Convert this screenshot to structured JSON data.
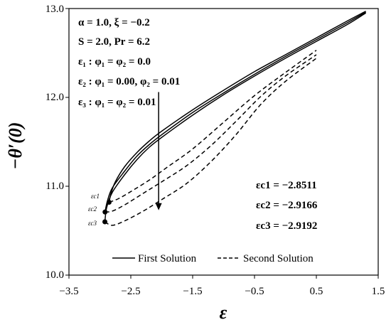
{
  "chart_data": {
    "type": "line",
    "title": "",
    "xlabel": "ε",
    "ylabel": "−θ′(0)",
    "xlim": [
      -3.5,
      1.5
    ],
    "ylim": [
      10.0,
      13.0
    ],
    "xticks": [
      "−3.5",
      "−2.5",
      "−1.5",
      "−0.5",
      "0.5",
      "1.5"
    ],
    "yticks": [
      "10.0",
      "11.0",
      "12.0",
      "13.0"
    ],
    "grid": false,
    "legend": {
      "placement": "bottom-right",
      "entries": [
        "First Solution",
        "Second Solution"
      ]
    },
    "parameters": [
      "α = 1.0, ξ = −0.2",
      "S = 2.0, Pr = 6.2",
      "ε₁ : φ₁ = φ₂ = 0.0",
      "ε₂ : φ₁ = 0.00, φ₂ = 0.01",
      "ε₃ : φ₁ = φ₂ = 0.01"
    ],
    "critical_labels": [
      "εc1 = −2.8511",
      "εc2 = −2.9166",
      "εc3 = −2.9192"
    ],
    "critical_markers": [
      "εc1",
      "εc2",
      "εc3"
    ],
    "critical_points": [
      {
        "x": -2.8511,
        "y": 10.82
      },
      {
        "x": -2.9166,
        "y": 10.71
      },
      {
        "x": -2.9192,
        "y": 10.6
      }
    ],
    "series": [
      {
        "style": "solid",
        "x": [
          -2.8511,
          -2.82,
          -2.75,
          -2.6,
          -2.4,
          -2.2,
          -2.0,
          -1.5,
          -1.0,
          -0.5,
          0.0,
          0.5,
          1.0,
          1.3
        ],
        "y": [
          10.82,
          10.92,
          11.05,
          11.22,
          11.38,
          11.51,
          11.62,
          11.86,
          12.08,
          12.29,
          12.48,
          12.67,
          12.86,
          12.97
        ]
      },
      {
        "style": "solid",
        "x": [
          -2.9166,
          -2.88,
          -2.8,
          -2.6,
          -2.4,
          -2.2,
          -2.0,
          -1.5,
          -1.0,
          -0.5,
          0.0,
          0.5,
          1.0,
          1.3
        ],
        "y": [
          10.71,
          10.83,
          10.98,
          11.17,
          11.34,
          11.47,
          11.58,
          11.83,
          12.05,
          12.26,
          12.46,
          12.65,
          12.84,
          12.96
        ]
      },
      {
        "style": "solid",
        "x": [
          -2.9192,
          -2.89,
          -2.8,
          -2.6,
          -2.4,
          -2.2,
          -2.0,
          -1.5,
          -1.0,
          -0.5,
          0.0,
          0.5,
          1.0,
          1.3
        ],
        "y": [
          10.6,
          10.76,
          10.93,
          11.13,
          11.3,
          11.44,
          11.55,
          11.8,
          12.03,
          12.24,
          12.44,
          12.63,
          12.82,
          12.95
        ]
      },
      {
        "style": "dashed",
        "x": [
          -2.8511,
          -2.7,
          -2.5,
          -2.2,
          -1.9,
          -1.5,
          -1.0,
          -0.5,
          0.0,
          0.5
        ],
        "y": [
          10.82,
          10.86,
          10.94,
          11.07,
          11.22,
          11.42,
          11.72,
          12.02,
          12.28,
          12.53
        ]
      },
      {
        "style": "dashed",
        "x": [
          -2.9166,
          -2.8,
          -2.6,
          -2.3,
          -2.0,
          -1.6,
          -1.2,
          -0.8,
          -0.4,
          0.0,
          0.5
        ],
        "y": [
          10.71,
          10.72,
          10.79,
          10.92,
          11.05,
          11.23,
          11.46,
          11.73,
          12.01,
          12.24,
          12.48
        ]
      },
      {
        "style": "dashed",
        "x": [
          -2.9192,
          -2.8,
          -2.6,
          -2.3,
          -2.0,
          -1.6,
          -1.2,
          -0.8,
          -0.4,
          0.0,
          0.5
        ],
        "y": [
          10.6,
          10.56,
          10.61,
          10.72,
          10.85,
          11.03,
          11.28,
          11.58,
          11.92,
          12.18,
          12.44
        ]
      }
    ],
    "arrow": {
      "x": -2.05,
      "y_start": 12.06,
      "y_end": 10.73
    }
  }
}
